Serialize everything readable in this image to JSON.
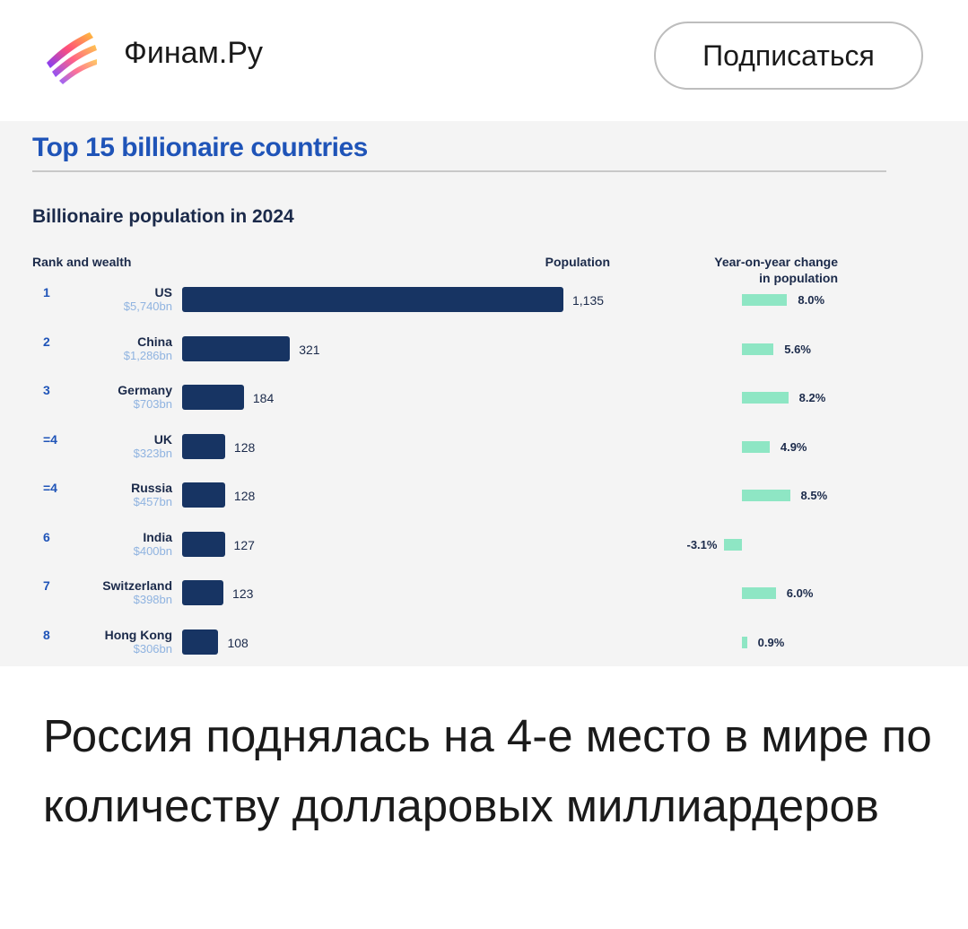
{
  "header": {
    "brand": "Финам.Ру",
    "subscribe_label": "Подписаться"
  },
  "chart_data": {
    "type": "bar",
    "title": "Top 15 billionaire countries",
    "subtitle": "Billionaire population in 2024",
    "column_headers": {
      "rank": "Rank and wealth",
      "population": "Population",
      "yoy_line1": "Year-on-year change",
      "yoy_line2": "in population"
    },
    "rows": [
      {
        "rank": "1",
        "country": "US",
        "wealth": "$5,740bn",
        "population": 1135,
        "population_label": "1,135",
        "yoy": 8.0,
        "yoy_label": "8.0%"
      },
      {
        "rank": "2",
        "country": "China",
        "wealth": "$1,286bn",
        "population": 321,
        "population_label": "321",
        "yoy": 5.6,
        "yoy_label": "5.6%"
      },
      {
        "rank": "3",
        "country": "Germany",
        "wealth": "$703bn",
        "population": 184,
        "population_label": "184",
        "yoy": 8.2,
        "yoy_label": "8.2%"
      },
      {
        "rank": "=4",
        "country": "UK",
        "wealth": "$323bn",
        "population": 128,
        "population_label": "128",
        "yoy": 4.9,
        "yoy_label": "4.9%"
      },
      {
        "rank": "=4",
        "country": "Russia",
        "wealth": "$457bn",
        "population": 128,
        "population_label": "128",
        "yoy": 8.5,
        "yoy_label": "8.5%"
      },
      {
        "rank": "6",
        "country": "India",
        "wealth": "$400bn",
        "population": 127,
        "population_label": "127",
        "yoy": -3.1,
        "yoy_label": "-3.1%"
      },
      {
        "rank": "7",
        "country": "Switzerland",
        "wealth": "$398bn",
        "population": 123,
        "population_label": "123",
        "yoy": 6.0,
        "yoy_label": "6.0%"
      },
      {
        "rank": "8",
        "country": "Hong Kong",
        "wealth": "$306bn",
        "population": 108,
        "population_label": "108",
        "yoy": 0.9,
        "yoy_label": "0.9%"
      }
    ],
    "colors": {
      "bar": "#173463",
      "yoy": "#8ee6c4",
      "title": "#1f54b8",
      "wealth": "#8fb3e0"
    }
  },
  "headline": "Россия поднялась на 4-е место в мире по количеству долларовых миллиардеров"
}
